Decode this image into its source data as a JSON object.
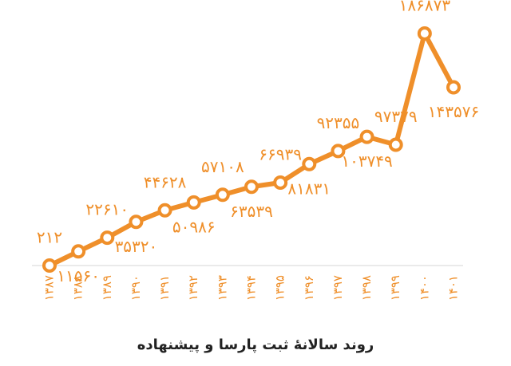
{
  "chart_data": {
    "type": "line",
    "title": "روند سالانهٔ ثبت پارسا و پیشنهاده",
    "categories": [
      "۱۳۸۷",
      "۱۳۸۸",
      "۱۳۸۹",
      "۱۳۹۰",
      "۱۳۹۱",
      "۱۳۹۲",
      "۱۳۹۳",
      "۱۳۹۴",
      "۱۳۹۵",
      "۱۳۹۶",
      "۱۳۹۷",
      "۱۳۹۸",
      "۱۳۹۹",
      "۱۴۰۰",
      "۱۴۰۱"
    ],
    "values": [
      212,
      11560,
      22610,
      35320,
      44628,
      50986,
      57108,
      63539,
      66939,
      81831,
      92355,
      103749,
      97379,
      186873,
      143576
    ],
    "value_labels": [
      "۲۱۲",
      "۱۱۵۶۰",
      "۲۲۶۱۰",
      "۳۵۳۲۰",
      "۴۴۶۲۸",
      "۵۰۹۸۶",
      "۵۷۱۰۸",
      "۶۳۵۳۹",
      "۶۶۹۳۹",
      "۸۱۸۳۱",
      "۹۲۳۵۵",
      "۱۰۳۷۴۹",
      "۹۷۳۷۹",
      "۱۸۶۸۷۳",
      "۱۴۳۵۷۶"
    ],
    "color": "#ef8f2a"
  }
}
